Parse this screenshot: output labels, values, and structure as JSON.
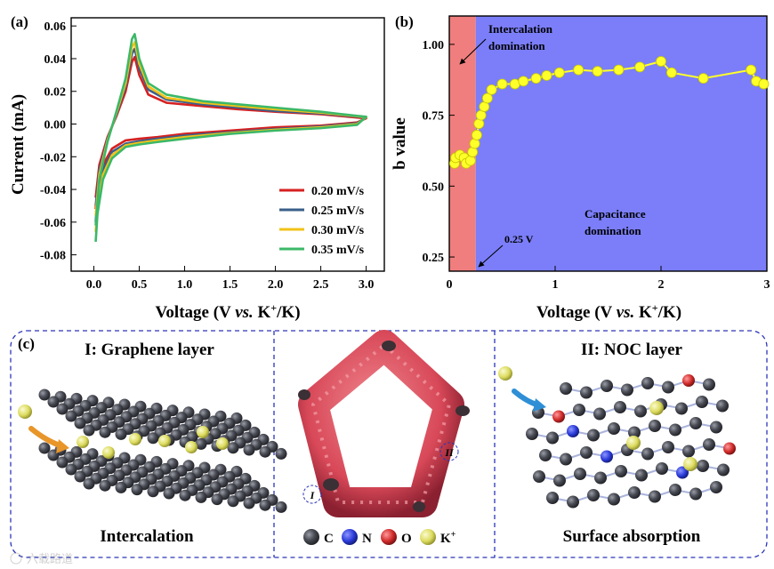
{
  "panel_labels": {
    "a": "(a)",
    "b": "(b)",
    "c": "(c)"
  },
  "chart_data": [
    {
      "type": "line",
      "title": "",
      "xlabel_parts": [
        "Voltage (V ",
        "vs.",
        " K",
        "+",
        "/K)"
      ],
      "ylabel": "Current (mA)",
      "xlim": [
        -0.25,
        3.2
      ],
      "ylim": [
        -0.09,
        0.065
      ],
      "xticks": [
        0.0,
        0.5,
        1.0,
        1.5,
        2.0,
        2.5,
        3.0
      ],
      "xtick_labels": [
        "0.0",
        "0.5",
        "1.0",
        "1.5",
        "2.0",
        "2.5",
        "3.0"
      ],
      "yticks": [
        -0.08,
        -0.06,
        -0.04,
        -0.02,
        0.0,
        0.02,
        0.04,
        0.06
      ],
      "ytick_labels": [
        "-0.08",
        "-0.06",
        "-0.04",
        "-0.02",
        "0.00",
        "0.02",
        "0.04",
        "0.06"
      ],
      "legend_position": "bottom-right",
      "series": [
        {
          "name": "0.20 mV/s",
          "color": "#d62020",
          "x": [
            0.02,
            0.06,
            0.15,
            0.25,
            0.35,
            0.42,
            0.45,
            0.5,
            0.6,
            0.8,
            1.2,
            1.6,
            2.0,
            2.5,
            2.9,
            3.0,
            2.9,
            2.5,
            2.0,
            1.5,
            1.0,
            0.7,
            0.5,
            0.35,
            0.2,
            0.1,
            0.04,
            0.02
          ],
          "y": [
            -0.045,
            -0.025,
            -0.008,
            0.005,
            0.02,
            0.038,
            0.041,
            0.03,
            0.018,
            0.013,
            0.011,
            0.009,
            0.0075,
            0.006,
            0.004,
            0.0035,
            0.001,
            -0.001,
            -0.002,
            -0.004,
            -0.006,
            -0.008,
            -0.009,
            -0.01,
            -0.015,
            -0.025,
            -0.04,
            -0.052
          ]
        },
        {
          "name": "0.25 mV/s",
          "color": "#3a5f8a",
          "x": [
            0.02,
            0.06,
            0.15,
            0.25,
            0.35,
            0.42,
            0.45,
            0.5,
            0.6,
            0.8,
            1.2,
            1.6,
            2.0,
            2.5,
            2.9,
            3.0,
            2.9,
            2.5,
            2.0,
            1.5,
            1.0,
            0.7,
            0.5,
            0.35,
            0.2,
            0.1,
            0.04,
            0.02
          ],
          "y": [
            -0.05,
            -0.028,
            -0.009,
            0.006,
            0.023,
            0.043,
            0.046,
            0.034,
            0.021,
            0.015,
            0.012,
            0.01,
            0.008,
            0.0065,
            0.0045,
            0.004,
            0.0005,
            -0.0015,
            -0.003,
            -0.005,
            -0.007,
            -0.009,
            -0.0105,
            -0.012,
            -0.017,
            -0.028,
            -0.045,
            -0.06
          ]
        },
        {
          "name": "0.30 mV/s",
          "color": "#f2c218",
          "x": [
            0.02,
            0.06,
            0.15,
            0.25,
            0.35,
            0.42,
            0.45,
            0.5,
            0.6,
            0.8,
            1.2,
            1.6,
            2.0,
            2.5,
            2.9,
            3.0,
            2.9,
            2.5,
            2.0,
            1.5,
            1.0,
            0.7,
            0.5,
            0.35,
            0.2,
            0.1,
            0.04,
            0.02
          ],
          "y": [
            -0.056,
            -0.031,
            -0.01,
            0.007,
            0.025,
            0.047,
            0.05,
            0.037,
            0.023,
            0.016,
            0.013,
            0.011,
            0.009,
            0.007,
            0.0048,
            0.0042,
            0.0,
            -0.002,
            -0.0035,
            -0.0055,
            -0.008,
            -0.01,
            -0.0115,
            -0.013,
            -0.019,
            -0.031,
            -0.05,
            -0.066
          ]
        },
        {
          "name": "0.35 mV/s",
          "color": "#3cb868",
          "x": [
            0.02,
            0.06,
            0.15,
            0.25,
            0.35,
            0.42,
            0.45,
            0.5,
            0.6,
            0.8,
            1.2,
            1.6,
            2.0,
            2.5,
            2.9,
            3.0,
            2.9,
            2.5,
            2.0,
            1.5,
            1.0,
            0.7,
            0.5,
            0.35,
            0.2,
            0.1,
            0.04,
            0.02
          ],
          "y": [
            -0.062,
            -0.034,
            -0.011,
            0.008,
            0.028,
            0.052,
            0.055,
            0.04,
            0.025,
            0.018,
            0.014,
            0.012,
            0.01,
            0.0075,
            0.005,
            0.0045,
            -0.0005,
            -0.0025,
            -0.004,
            -0.006,
            -0.009,
            -0.011,
            -0.0125,
            -0.014,
            -0.021,
            -0.034,
            -0.055,
            -0.072
          ]
        }
      ]
    },
    {
      "type": "scatter",
      "title": "",
      "xlabel_parts": [
        "Voltage (V ",
        "vs.",
        " K",
        "+",
        "/K)"
      ],
      "ylabel": "b value",
      "xlim": [
        0,
        3
      ],
      "ylim": [
        0.2,
        1.1
      ],
      "xticks": [
        0,
        1,
        2,
        3
      ],
      "xtick_labels": [
        "0",
        "1",
        "2",
        "3"
      ],
      "yticks": [
        0.25,
        0.5,
        0.75,
        1.0
      ],
      "ytick_labels": [
        "0.25",
        "0.50",
        "0.75",
        "1.00"
      ],
      "regions": [
        {
          "x_from": 0,
          "x_to": 0.25,
          "color": "#f07e7e"
        },
        {
          "x_from": 0.25,
          "x_to": 3,
          "color": "#7b7ef8"
        }
      ],
      "annotations": {
        "intercalation_line1": "Intercalation",
        "intercalation_line2": "domination",
        "capacitance_line1": "Capacitance",
        "capacitance_line2": "domination",
        "boundary_label": "0.25 V"
      },
      "marker_color": "#ffff2a",
      "series": [
        {
          "name": "b value",
          "x": [
            0.05,
            0.06,
            0.1,
            0.14,
            0.16,
            0.2,
            0.22,
            0.24,
            0.26,
            0.28,
            0.3,
            0.33,
            0.36,
            0.4,
            0.5,
            0.62,
            0.7,
            0.82,
            0.92,
            1.04,
            1.22,
            1.4,
            1.6,
            1.8,
            2.0,
            2.1,
            2.4,
            2.85,
            2.9,
            2.97
          ],
          "y": [
            0.58,
            0.6,
            0.61,
            0.6,
            0.58,
            0.59,
            0.62,
            0.65,
            0.68,
            0.72,
            0.75,
            0.78,
            0.81,
            0.84,
            0.86,
            0.86,
            0.87,
            0.88,
            0.89,
            0.9,
            0.91,
            0.905,
            0.91,
            0.92,
            0.94,
            0.9,
            0.88,
            0.91,
            0.87,
            0.86
          ]
        }
      ]
    }
  ],
  "panel_c": {
    "left_title": "I: Graphene layer",
    "left_caption": "Intercalation",
    "right_title": "II: NOC layer",
    "right_caption": "Surface absorption",
    "center_label_i": "I",
    "center_label_ii": "II",
    "legend": [
      {
        "symbol": "C",
        "color": "#4a4c55"
      },
      {
        "symbol": "N",
        "color": "#2a3ad8"
      },
      {
        "symbol": "O",
        "color": "#d02a2a"
      },
      {
        "symbol": "K",
        "superscript": "+",
        "color": "#e8e85a"
      }
    ],
    "colors": {
      "carbon": "#4a4c55",
      "potassium": "#e0df6a",
      "nitrogen": "#2a3ad8",
      "oxygen": "#d02a2a",
      "frame": "#d84858",
      "arrow": "#e8962a",
      "arrow_blue": "#2f8fd6"
    }
  },
  "watermark": "六载路道"
}
